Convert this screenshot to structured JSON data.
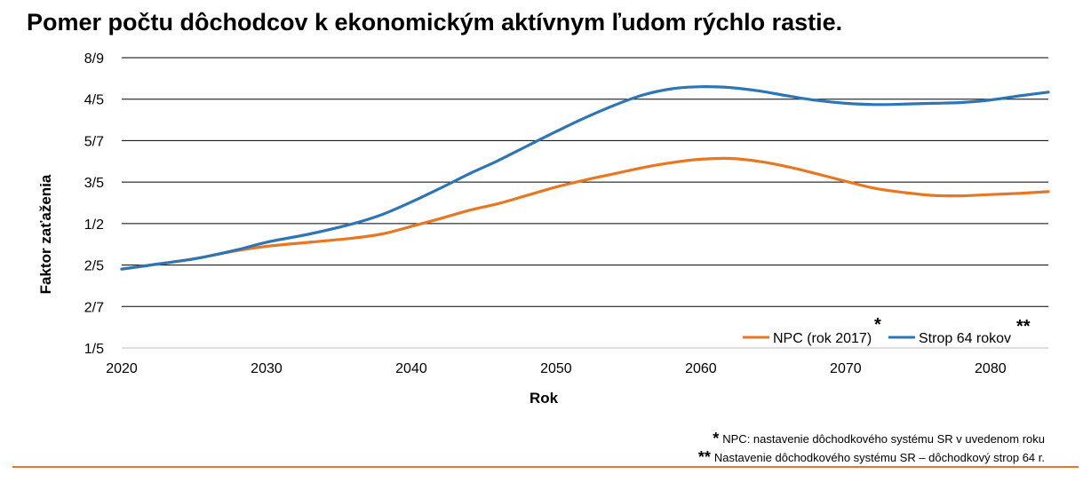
{
  "title": "Pomer počtu dôchodcov k ekonomickým aktívnym ľudom rýchlo rastie.",
  "colors": {
    "npc": "#e87722",
    "strop": "#2e75b6",
    "rule": "#e87722"
  },
  "chart_data": {
    "type": "line",
    "title": "Pomer počtu dôchodcov k ekonomickým aktívnym ľudom rýchlo rastie.",
    "xlabel": "Rok",
    "ylabel": "Faktor zaťaženia",
    "xlim": [
      2020,
      2084
    ],
    "ylim": [
      0,
      7
    ],
    "x_ticks": [
      2020,
      2030,
      2040,
      2050,
      2060,
      2070,
      2080
    ],
    "x_tick_labels": [
      "2020",
      "2030",
      "2040",
      "2050",
      "2060",
      "2070",
      "2080"
    ],
    "y_tick_labels": [
      "1/5",
      "2/7",
      "2/5",
      "1/2",
      "3/5",
      "5/7",
      "4/5",
      "8/9"
    ],
    "grid": true,
    "legend_position": "bottom-right",
    "series": [
      {
        "name": "NPC (rok 2017)",
        "marker": "*",
        "color": "#e87722",
        "x": [
          2020,
          2022,
          2025,
          2028,
          2030,
          2033,
          2036,
          2038,
          2040,
          2042,
          2044,
          2046,
          2048,
          2050,
          2052,
          2054,
          2056,
          2058,
          2060,
          2062,
          2064,
          2066,
          2068,
          2070,
          2072,
          2074,
          2076,
          2078,
          2080,
          2082,
          2084
        ],
        "values": [
          1.9,
          2.0,
          2.15,
          2.35,
          2.45,
          2.55,
          2.65,
          2.75,
          2.93,
          3.12,
          3.32,
          3.48,
          3.68,
          3.88,
          4.05,
          4.2,
          4.35,
          4.47,
          4.55,
          4.57,
          4.5,
          4.37,
          4.2,
          4.02,
          3.85,
          3.75,
          3.68,
          3.67,
          3.7,
          3.73,
          3.77
        ]
      },
      {
        "name": "Strop 64 rokov",
        "marker": "**",
        "color": "#2e75b6",
        "x": [
          2020,
          2022,
          2025,
          2028,
          2030,
          2033,
          2036,
          2038,
          2040,
          2042,
          2044,
          2046,
          2048,
          2050,
          2052,
          2054,
          2056,
          2058,
          2060,
          2062,
          2064,
          2066,
          2068,
          2070,
          2072,
          2074,
          2076,
          2078,
          2080,
          2082,
          2084
        ],
        "values": [
          1.9,
          2.0,
          2.15,
          2.37,
          2.55,
          2.75,
          3.0,
          3.22,
          3.52,
          3.85,
          4.2,
          4.52,
          4.87,
          5.22,
          5.55,
          5.85,
          6.1,
          6.25,
          6.3,
          6.28,
          6.2,
          6.08,
          5.97,
          5.9,
          5.87,
          5.88,
          5.9,
          5.92,
          5.98,
          6.08,
          6.17
        ]
      }
    ]
  },
  "notes": [
    {
      "mark": "*",
      "text": "NPC: nastavenie dôchodkového systému SR v uvedenom roku"
    },
    {
      "mark": "**",
      "text": "Nastavenie dôchodkového systému SR – dôchodkový strop 64 r."
    }
  ]
}
